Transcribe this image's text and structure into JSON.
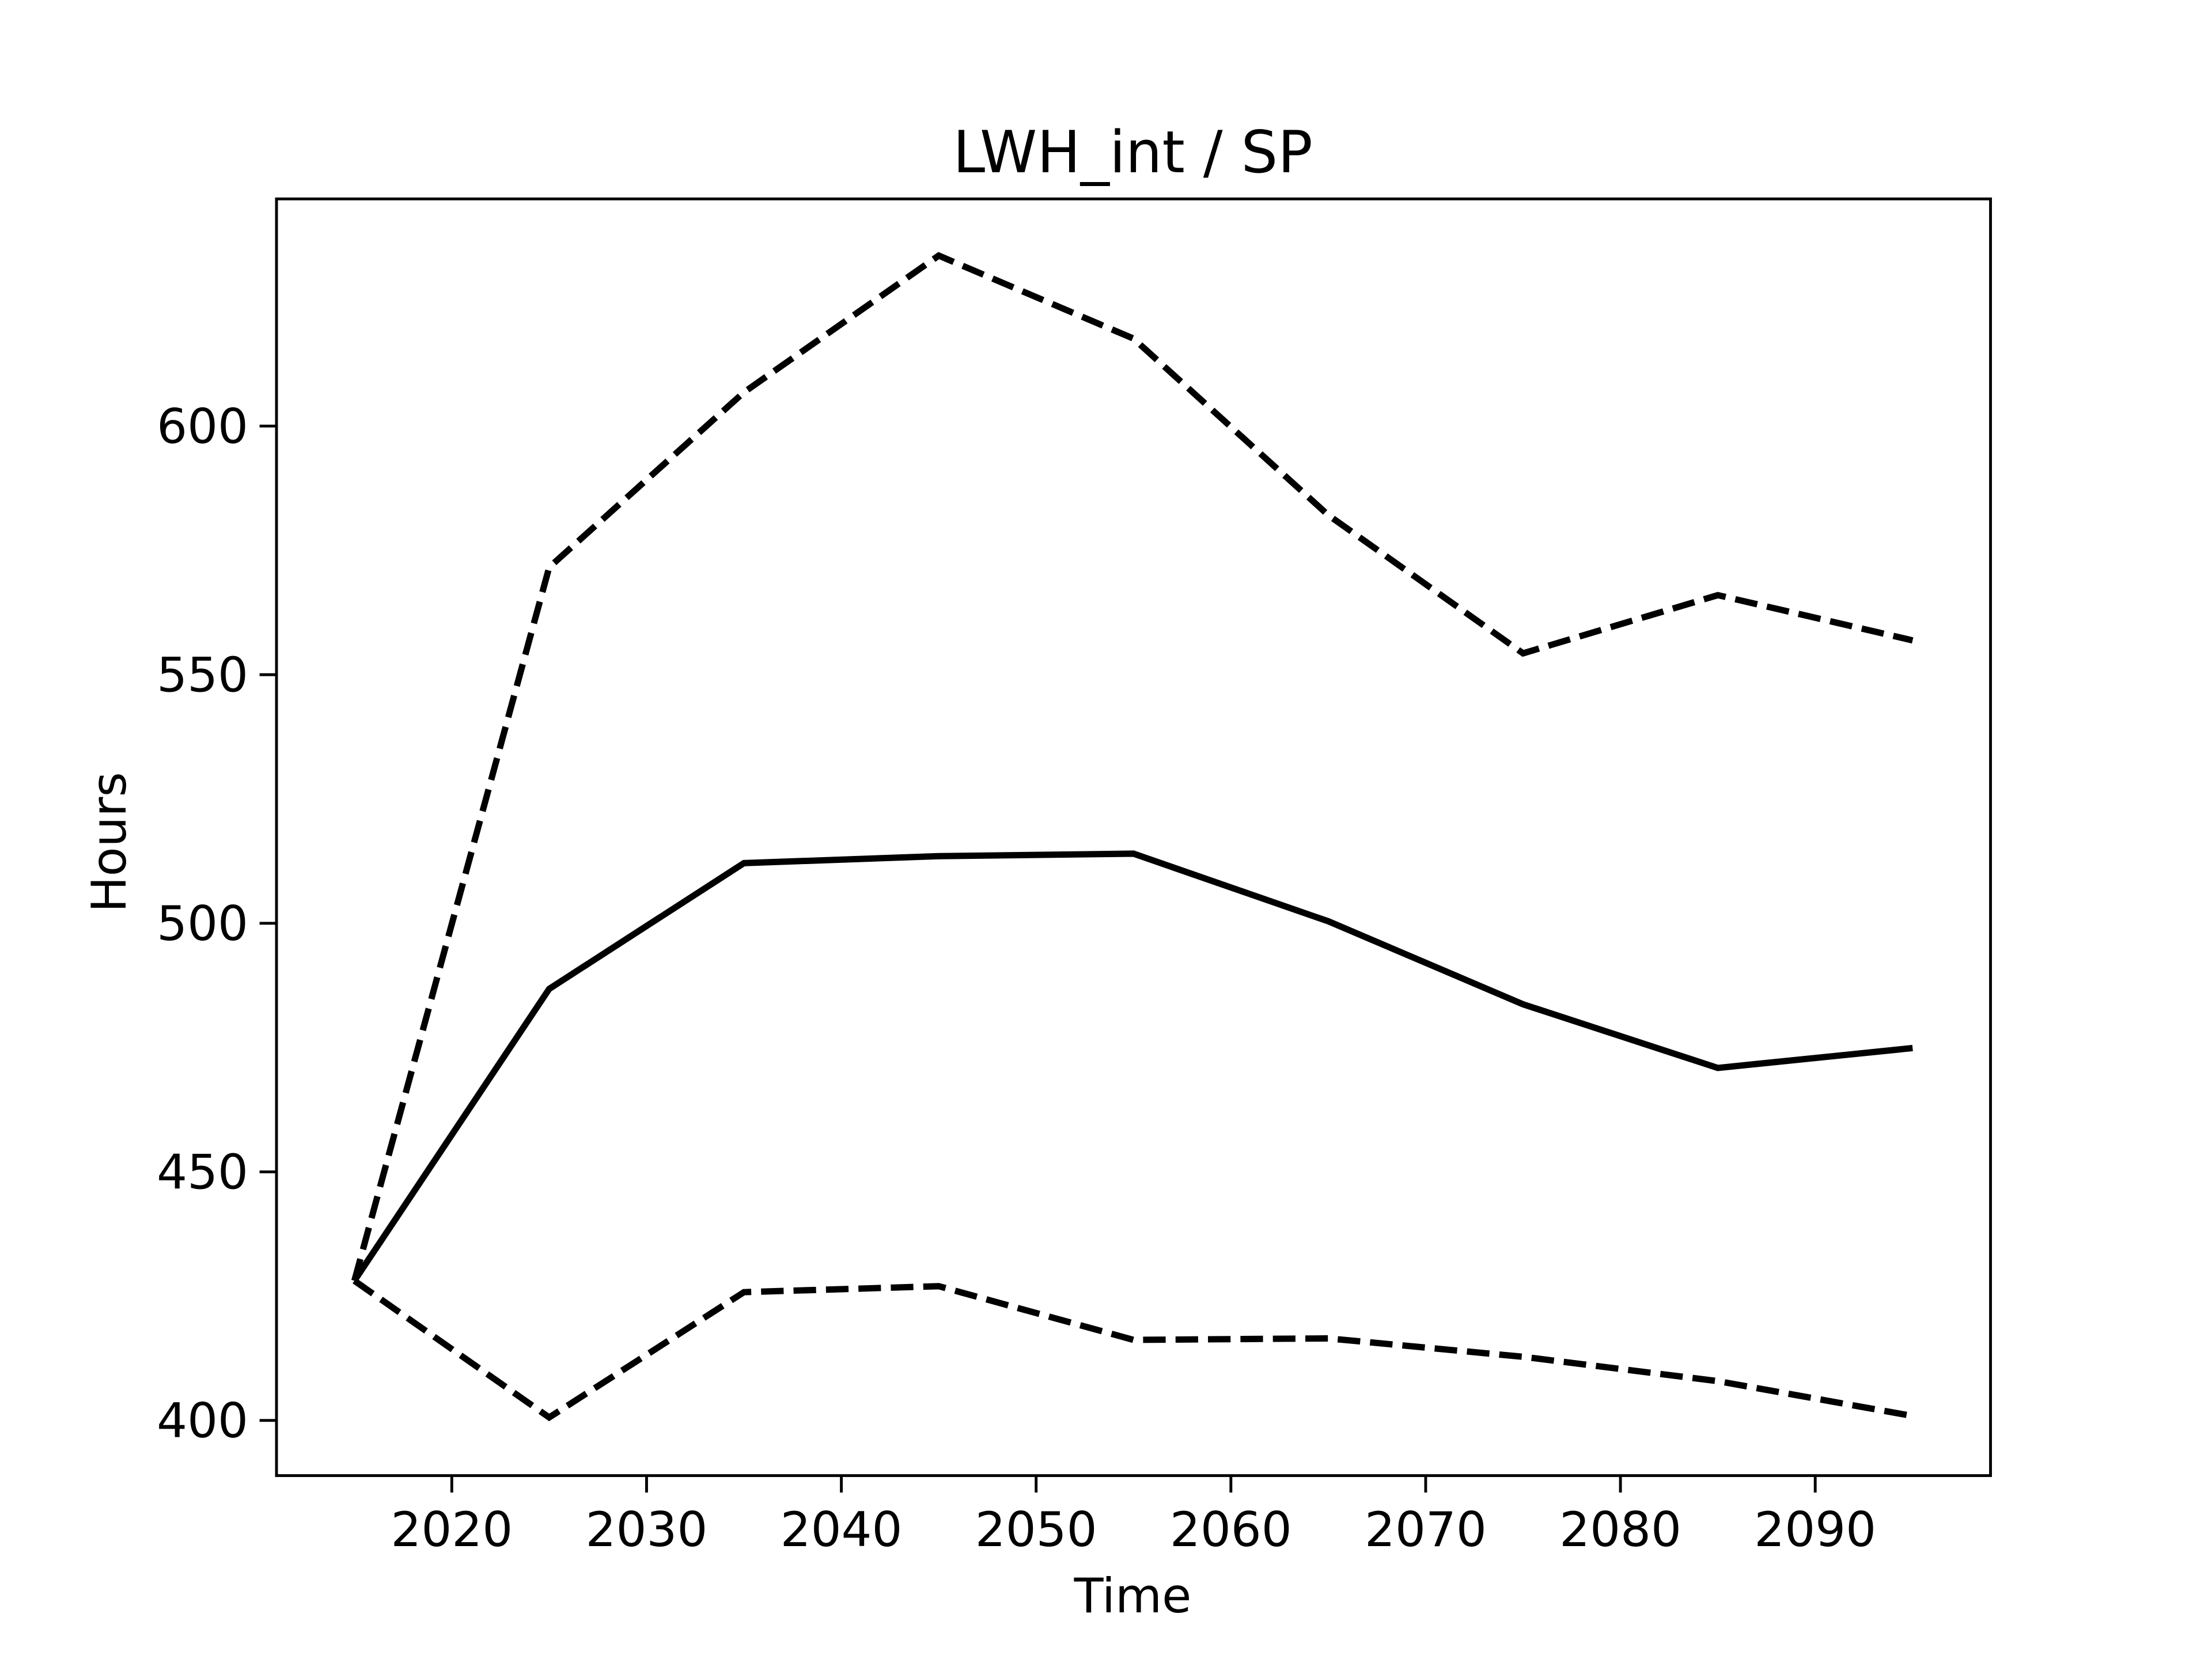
{
  "chart_data": {
    "type": "line",
    "title": "LWH_int / SP",
    "xlabel": "Time",
    "ylabel": "Hours",
    "x": [
      2015,
      2025,
      2035,
      2045,
      2055,
      2065,
      2075,
      2085,
      2095
    ],
    "series": [
      {
        "color": "#000000",
        "linestyle": "solid",
        "values": [
          428.1,
          486.8,
          512.1,
          513.5,
          514.0,
          500.4,
          483.7,
          470.9,
          474.9
        ]
      },
      {
        "color": "#000000",
        "linestyle": "dashed",
        "values": [
          428.1,
          571.6,
          606.8,
          634.3,
          617.6,
          582.1,
          554.3,
          566.0,
          556.9
        ]
      },
      {
        "color": "#000000",
        "linestyle": "dashed",
        "values": [
          428.1,
          400.6,
          425.8,
          427.0,
          416.2,
          416.5,
          412.8,
          407.9,
          400.9
        ]
      }
    ],
    "xlim": [
      2011,
      2099
    ],
    "xticks": [
      2020,
      2030,
      2040,
      2050,
      2060,
      2070,
      2080,
      2090
    ],
    "ylim": [
      388.9,
      645.7
    ],
    "yticks": [
      400,
      450,
      500,
      550,
      600
    ],
    "grid": false
  }
}
